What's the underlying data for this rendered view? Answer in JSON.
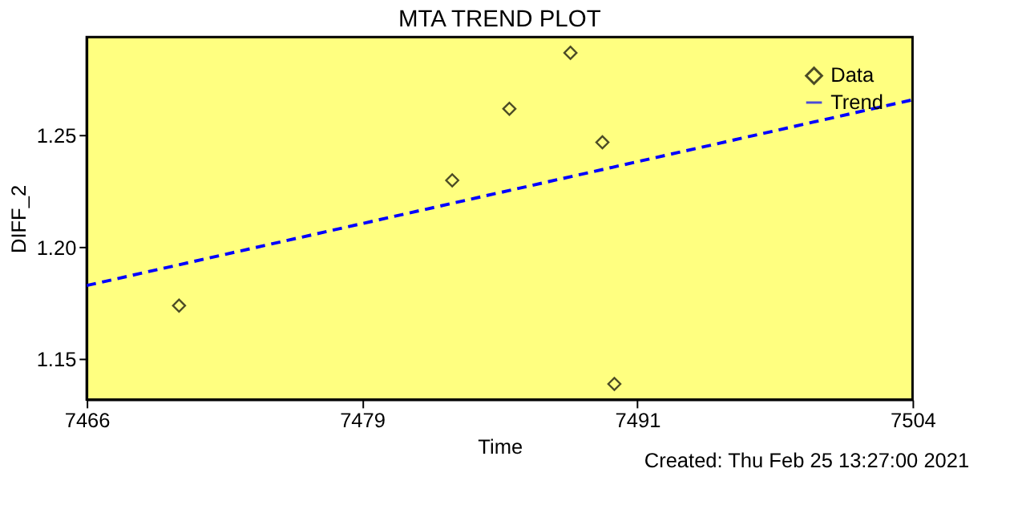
{
  "chart_data": {
    "type": "scatter",
    "title": "MTA TREND PLOT",
    "xlabel": "Time",
    "ylabel": "DIFF_2",
    "series": [
      {
        "name": "Data",
        "color": "#000000",
        "marker": "diamond",
        "x": [
          7470.25,
          7482.82,
          7485.45,
          7488.26,
          7489.73,
          7490.28
        ],
        "values": [
          1.174,
          1.23,
          1.262,
          1.287,
          1.247,
          1.139
        ]
      },
      {
        "name": "Trend",
        "type": "line",
        "color": "#0000ff",
        "marker": "none",
        "line_style": "dashed",
        "x": [
          7466,
          7504
        ],
        "values": [
          1.183,
          1.266
        ]
      }
    ],
    "xlim": [
      7466,
      7504
    ],
    "xticks": [
      7466,
      {
        "value": 7478.667,
        "label": "7479"
      },
      {
        "value": 7491.333,
        "label": "7491"
      },
      7504
    ],
    "ylim": [
      1.132,
      1.294
    ],
    "yticks": [
      1.15,
      {
        "value": 1.2,
        "label": "1.20"
      },
      1.25
    ],
    "grid": false,
    "legend": "top right",
    "annotations": [
      "Created: Thu Feb 25 13:27:00 2021"
    ]
  }
}
